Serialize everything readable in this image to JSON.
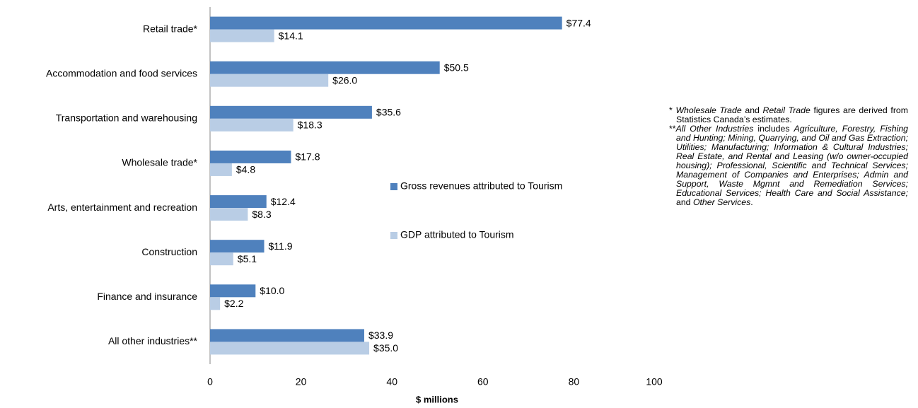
{
  "chart_data": {
    "type": "hbar",
    "categories": [
      "Retail trade*",
      "Accommodation and food services",
      "Transportation and warehousing",
      "Wholesale trade*",
      "Arts, entertainment and recreation",
      "Construction",
      "Finance and insurance",
      "All other industries**"
    ],
    "series": [
      {
        "name": "Gross revenues attributed to Tourism",
        "color": "#4f81bd",
        "values": [
          77.4,
          50.5,
          35.6,
          17.8,
          12.4,
          11.9,
          10.0,
          33.9
        ],
        "value_labels": [
          "$77.4",
          "$50.5",
          "$35.6",
          "$17.8",
          "$12.4",
          "$11.9",
          "$10.0",
          "$33.9"
        ]
      },
      {
        "name": "GDP attributed to Tourism",
        "color": "#b9cde5",
        "values": [
          14.1,
          26.0,
          18.3,
          4.8,
          8.3,
          5.1,
          2.2,
          35.0
        ],
        "value_labels": [
          "$14.1",
          "$26.0",
          "$18.3",
          "$4.8",
          "$8.3",
          "$5.1",
          "$2.2",
          "$35.0"
        ]
      }
    ],
    "xlim": [
      0,
      100
    ],
    "xticks": [
      0,
      20,
      40,
      60,
      80,
      100
    ],
    "x_label": "$ millions"
  },
  "footnotes": [
    [
      {
        "text": "* ",
        "italic": false
      },
      {
        "text": "Wholesale Trade",
        "italic": true
      },
      {
        "text": " and ",
        "italic": false
      },
      {
        "text": "Retail Trade",
        "italic": true
      },
      {
        "text": " figures are derived from Statistics Canada’s estimates.",
        "italic": false
      }
    ],
    [
      {
        "text": "**",
        "italic": false
      },
      {
        "text": "All Other Industries",
        "italic": true
      },
      {
        "text": " includes ",
        "italic": false
      },
      {
        "text": "Agriculture, Forestry, Fishing and Hunting; Mining, Quarrying, and Oil and Gas Extraction; Utilities; Manufacturing; Information & Cultural Industries; Real Estate, and Rental and Leasing (w/o owner-occupied housing); Professional, Scientific and Technical Services; Management of Companies and Enterprises; Admin and Support, Waste Mgmnt and Remediation Services; Educational Services; Health Care and Social Assistance;",
        "italic": true
      },
      {
        "text": " and ",
        "italic": false
      },
      {
        "text": "Other Services",
        "italic": true
      },
      {
        "text": ".",
        "italic": false
      }
    ]
  ]
}
